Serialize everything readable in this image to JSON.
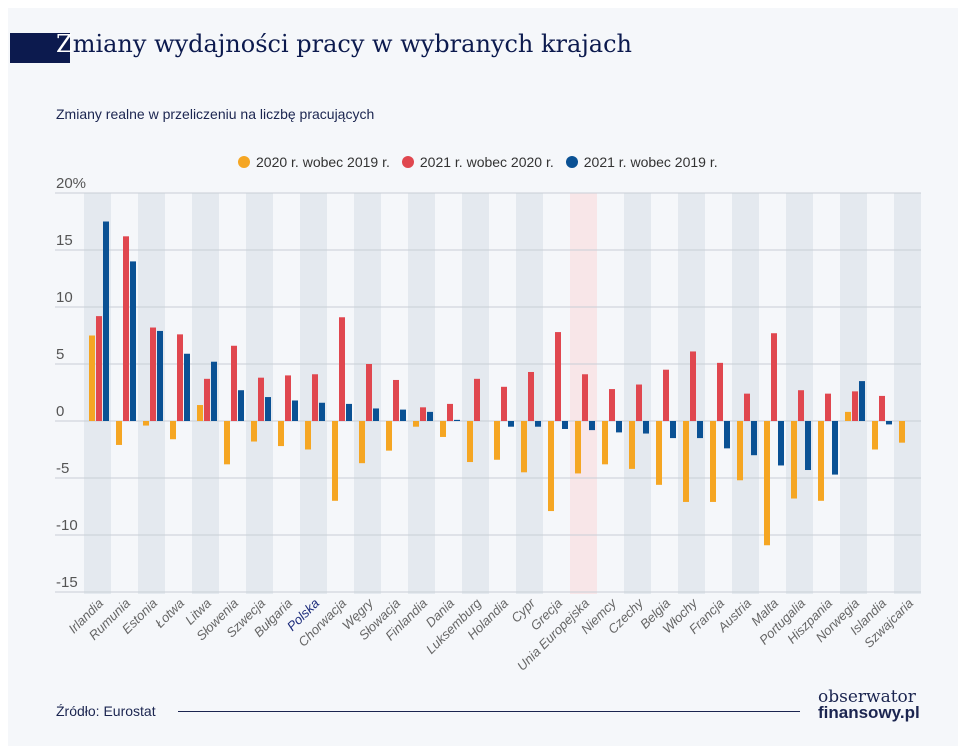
{
  "title": "Zmiany wydajności pracy w wybranych krajach",
  "title_first_letter": "Z",
  "title_rest": "miany wydajności pracy w wybranych krajach",
  "subtitle": "Zmiany realne w przeliczeniu na liczbę pracujących",
  "source": "Źródło: Eurostat",
  "logo": {
    "line1": "obserwator",
    "line2": "finansowy.pl"
  },
  "colors": {
    "s2020": "#f5a623",
    "s2021": "#e0474f",
    "s2021v2019": "#0a5194",
    "band": "#e4e9ef",
    "highlight_band": "#f8e6e8",
    "highlight_label": "#1b2a7a"
  },
  "chart_data": {
    "type": "bar",
    "title": "Zmiany wydajności pracy w wybranych krajach",
    "ylabel": "",
    "ylim": [
      -15,
      20
    ],
    "yticks": [
      20,
      15,
      10,
      5,
      0,
      -5,
      -10,
      -15
    ],
    "ytick_labels": [
      "20%",
      "15",
      "10",
      "5",
      "0",
      "-5",
      "-10",
      "-15"
    ],
    "grid": true,
    "legend_position": "top",
    "highlight_categories": [
      "Polska",
      "Unia Europejska"
    ],
    "categories": [
      "Irlandia",
      "Rumunia",
      "Estonia",
      "Łotwa",
      "Litwa",
      "Słowenia",
      "Szwecja",
      "Bułgaria",
      "Polska",
      "Chorwacja",
      "Węgry",
      "Słowacja",
      "Finlandia",
      "Dania",
      "Luksemburg",
      "Holandia",
      "Cypr",
      "Grecja",
      "Unia Europejska",
      "Niemcy",
      "Czechy",
      "Belgia",
      "Włochy",
      "Francja",
      "Austria",
      "Malta",
      "Portugalia",
      "Hiszpania",
      "Norwegia",
      "Islandia",
      "Szwajcaria"
    ],
    "series": [
      {
        "name": "2020 r. wobec 2019 r.",
        "color": "#f5a623",
        "values": [
          7.5,
          -2.1,
          -0.4,
          -1.6,
          1.4,
          -3.8,
          -1.8,
          -2.2,
          -2.5,
          -7.0,
          -3.7,
          -2.6,
          -0.5,
          -1.4,
          -3.6,
          -3.4,
          -4.5,
          -7.9,
          -4.6,
          -3.8,
          -4.2,
          -5.6,
          -7.1,
          -7.1,
          -5.2,
          -10.9,
          -6.8,
          -7.0,
          0.8,
          -2.5,
          -1.9
        ]
      },
      {
        "name": "2021 r. wobec 2020 r.",
        "color": "#e0474f",
        "values": [
          9.2,
          16.2,
          8.2,
          7.6,
          3.7,
          6.6,
          3.8,
          4.0,
          4.1,
          9.1,
          5.0,
          3.6,
          1.2,
          1.5,
          3.7,
          3.0,
          4.3,
          7.8,
          4.1,
          2.8,
          3.2,
          4.5,
          6.1,
          5.1,
          2.4,
          7.7,
          2.7,
          2.4,
          2.6,
          2.2,
          null
        ]
      },
      {
        "name": "2021 r. wobec 2019 r.",
        "color": "#0a5194",
        "values": [
          17.5,
          14.0,
          7.9,
          5.9,
          5.2,
          2.7,
          2.1,
          1.8,
          1.6,
          1.5,
          1.1,
          1.0,
          0.8,
          0.1,
          null,
          -0.5,
          -0.5,
          -0.7,
          -0.8,
          -1.0,
          -1.1,
          -1.5,
          -1.5,
          -2.4,
          -3.0,
          -3.9,
          -4.3,
          -4.7,
          3.5,
          -0.3,
          null
        ]
      }
    ]
  }
}
